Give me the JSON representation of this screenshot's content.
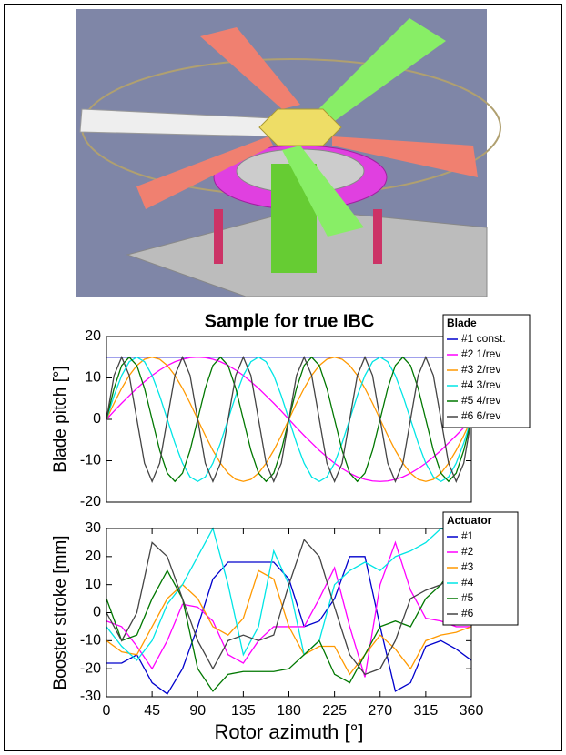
{
  "chart_data": [
    {
      "type": "line",
      "title": "Sample for true IBC",
      "ylabel": "Blade pitch [°]",
      "legend_title": "Blade",
      "x": [
        0,
        7.5,
        15,
        22.5,
        30,
        37.5,
        45,
        52.5,
        60,
        67.5,
        75,
        82.5,
        90,
        97.5,
        105,
        112.5,
        120,
        127.5,
        135,
        142.5,
        150,
        157.5,
        165,
        172.5,
        180,
        187.5,
        195,
        202.5,
        210,
        217.5,
        225,
        232.5,
        240,
        247.5,
        255,
        262.5,
        270,
        277.5,
        285,
        292.5,
        300,
        307.5,
        315,
        322.5,
        330,
        337.5,
        345,
        352.5,
        360
      ],
      "xlim": [
        0,
        360
      ],
      "ylim": [
        -20,
        20
      ],
      "yticks": [
        -20,
        -10,
        0,
        10,
        20
      ],
      "series": [
        {
          "name": "#1 const.",
          "color": "#0000cc",
          "values": [
            15,
            15,
            15,
            15,
            15,
            15,
            15,
            15,
            15,
            15,
            15,
            15,
            15,
            15,
            15,
            15,
            15,
            15,
            15,
            15,
            15,
            15,
            15,
            15,
            15,
            15,
            15,
            15,
            15,
            15,
            15,
            15,
            15,
            15,
            15,
            15,
            15,
            15,
            15,
            15,
            15,
            15,
            15,
            15,
            15,
            15,
            15,
            15,
            15
          ]
        },
        {
          "name": "#2 1/rev",
          "color": "#ff00ff",
          "values": [
            0,
            2,
            3.9,
            5.7,
            7.5,
            9.1,
            10.6,
            11.9,
            13,
            13.9,
            14.5,
            14.9,
            15,
            14.9,
            14.5,
            13.9,
            13,
            11.9,
            10.6,
            9.1,
            7.5,
            5.7,
            3.9,
            2,
            0,
            -2,
            -3.9,
            -5.7,
            -7.5,
            -9.1,
            -10.6,
            -11.9,
            -13,
            -13.9,
            -14.5,
            -14.9,
            -15,
            -14.9,
            -14.5,
            -13.9,
            -13,
            -11.9,
            -10.6,
            -9.1,
            -7.5,
            -5.7,
            -3.9,
            -2,
            0
          ]
        },
        {
          "name": "#3 2/rev",
          "color": "#ff9900",
          "values": [
            0,
            3.9,
            7.5,
            10.6,
            13,
            14.5,
            15,
            14.5,
            13,
            10.6,
            7.5,
            3.9,
            0,
            -3.9,
            -7.5,
            -10.6,
            -13,
            -14.5,
            -15,
            -14.5,
            -13,
            -10.6,
            -7.5,
            -3.9,
            0,
            3.9,
            7.5,
            10.6,
            13,
            14.5,
            15,
            14.5,
            13,
            10.6,
            7.5,
            3.9,
            0,
            -3.9,
            -7.5,
            -10.6,
            -13,
            -14.5,
            -15,
            -14.5,
            -13,
            -10.6,
            -7.5,
            -3.9,
            0
          ]
        },
        {
          "name": "#4 3/rev",
          "color": "#00e5e5",
          "values": [
            0,
            5.7,
            10.6,
            13.9,
            15,
            13.9,
            10.6,
            5.7,
            0,
            -5.7,
            -10.6,
            -13.9,
            -15,
            -13.9,
            -10.6,
            -5.7,
            0,
            5.7,
            10.6,
            13.9,
            15,
            13.9,
            10.6,
            5.7,
            0,
            -5.7,
            -10.6,
            -13.9,
            -15,
            -13.9,
            -10.6,
            -5.7,
            0,
            5.7,
            10.6,
            13.9,
            15,
            13.9,
            10.6,
            5.7,
            0,
            -5.7,
            -10.6,
            -13.9,
            -15,
            -13.9,
            -10.6,
            -5.7,
            0
          ]
        },
        {
          "name": "#5 4/rev",
          "color": "#007700",
          "values": [
            0,
            7.5,
            13,
            15,
            13,
            7.5,
            0,
            -7.5,
            -13,
            -15,
            -13,
            -7.5,
            0,
            7.5,
            13,
            15,
            13,
            7.5,
            0,
            -7.5,
            -13,
            -15,
            -13,
            -7.5,
            0,
            7.5,
            13,
            15,
            13,
            7.5,
            0,
            -7.5,
            -13,
            -15,
            -13,
            -7.5,
            0,
            7.5,
            13,
            15,
            13,
            7.5,
            0,
            -7.5,
            -13,
            -15,
            -13,
            -7.5,
            0
          ]
        },
        {
          "name": "#6 6/rev",
          "color": "#444444",
          "values": [
            0,
            10.6,
            15,
            10.6,
            0,
            -10.6,
            -15,
            -10.6,
            0,
            10.6,
            15,
            10.6,
            0,
            -10.6,
            -15,
            -10.6,
            0,
            10.6,
            15,
            10.6,
            0,
            -10.6,
            -15,
            -10.6,
            0,
            10.6,
            15,
            10.6,
            0,
            -10.6,
            -15,
            -10.6,
            0,
            10.6,
            15,
            10.6,
            0,
            -10.6,
            -15,
            -10.6,
            0,
            10.6,
            15,
            10.6,
            0,
            -10.6,
            -15,
            -10.6,
            0
          ]
        }
      ]
    },
    {
      "type": "line",
      "ylabel": "Booster stroke [mm]",
      "xlabel": "Rotor azimuth [°]",
      "legend_title": "Actuator",
      "x": [
        0,
        15,
        30,
        45,
        60,
        75,
        90,
        105,
        120,
        135,
        150,
        165,
        180,
        195,
        210,
        225,
        240,
        255,
        270,
        285,
        300,
        315,
        330,
        345,
        360
      ],
      "xlim": [
        0,
        360
      ],
      "xticks": [
        0,
        45,
        90,
        135,
        180,
        225,
        270,
        315,
        360
      ],
      "ylim": [
        -30,
        30
      ],
      "yticks": [
        -30,
        -20,
        -10,
        0,
        10,
        20,
        30
      ],
      "series": [
        {
          "name": "#1",
          "color": "#0000cc",
          "values": [
            -18,
            -18,
            -15,
            -25,
            -29,
            -20,
            -5,
            12,
            18,
            18,
            18,
            18,
            12,
            -5,
            -3,
            5,
            20,
            20,
            -5,
            -28,
            -25,
            -12,
            -10,
            -13,
            -17
          ]
        },
        {
          "name": "#2",
          "color": "#ff00ff",
          "values": [
            -3,
            -5,
            -12,
            -20,
            -10,
            3,
            2,
            -3,
            -15,
            -18,
            -10,
            -5,
            -5,
            -5,
            5,
            16,
            -5,
            -23,
            10,
            25,
            8,
            -2,
            -3,
            -5,
            -5
          ]
        },
        {
          "name": "#3",
          "color": "#ff9900",
          "values": [
            -10,
            -14,
            -15,
            -5,
            5,
            10,
            5,
            -5,
            -8,
            -2,
            15,
            12,
            -5,
            -15,
            -12,
            -12,
            -22,
            -15,
            -8,
            -13,
            -20,
            -10,
            -8,
            -7,
            -5
          ]
        },
        {
          "name": "#4",
          "color": "#00e5e5",
          "values": [
            -5,
            -12,
            -17,
            -10,
            3,
            10,
            20,
            30,
            10,
            -15,
            -5,
            22,
            10,
            -15,
            -10,
            10,
            15,
            18,
            15,
            20,
            22,
            25,
            30,
            28,
            25
          ]
        },
        {
          "name": "#5",
          "color": "#007700",
          "values": [
            5,
            -10,
            -8,
            5,
            15,
            5,
            -20,
            -28,
            -22,
            -21,
            -21,
            -21,
            -20,
            -15,
            -10,
            -22,
            -25,
            -15,
            -5,
            -3,
            -5,
            5,
            10,
            18,
            28
          ]
        },
        {
          "name": "#6",
          "color": "#444444",
          "values": [
            0,
            -10,
            0,
            25,
            20,
            5,
            -10,
            -20,
            -10,
            -8,
            -10,
            -8,
            10,
            26,
            20,
            2,
            -15,
            -22,
            -20,
            -10,
            5,
            8,
            10,
            15,
            5
          ]
        }
      ]
    }
  ]
}
